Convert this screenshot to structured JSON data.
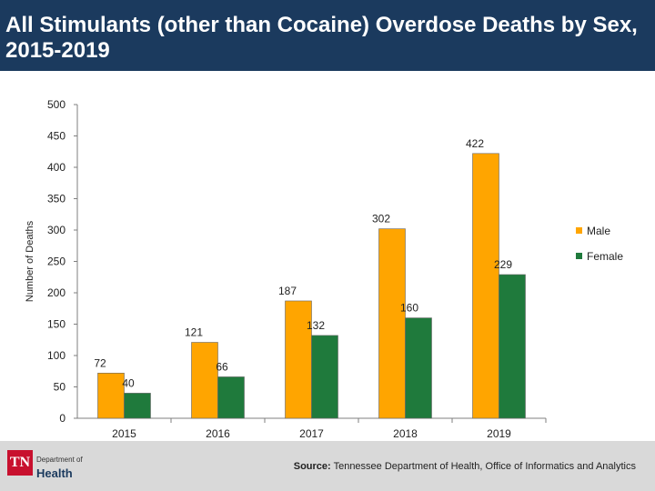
{
  "title": "All Stimulants (other than Cocaine) Overdose Deaths by Sex, 2015-2019",
  "chart_data": {
    "type": "bar",
    "title": "All Stimulants (other than Cocaine) Overdose Deaths by Sex, 2015-2019",
    "xlabel": "",
    "ylabel": "Number of Deaths",
    "categories": [
      "2015",
      "2016",
      "2017",
      "2018",
      "2019"
    ],
    "series": [
      {
        "name": "Male",
        "values": [
          72,
          121,
          187,
          302,
          422
        ],
        "color": "#ffa500"
      },
      {
        "name": "Female",
        "values": [
          40,
          66,
          132,
          160,
          229
        ],
        "color": "#1f7a3c"
      }
    ],
    "ylim": [
      0,
      500
    ],
    "yticks": [
      0,
      50,
      100,
      150,
      200,
      250,
      300,
      350,
      400,
      450,
      500
    ],
    "grid": false,
    "legend": "right"
  },
  "footer": {
    "source_label": "Source:",
    "source_text": "Tennessee Department of Health, Office of Informatics and Analytics",
    "logo_tn": "TN",
    "logo_dept": "Department of",
    "logo_health": "Health"
  }
}
